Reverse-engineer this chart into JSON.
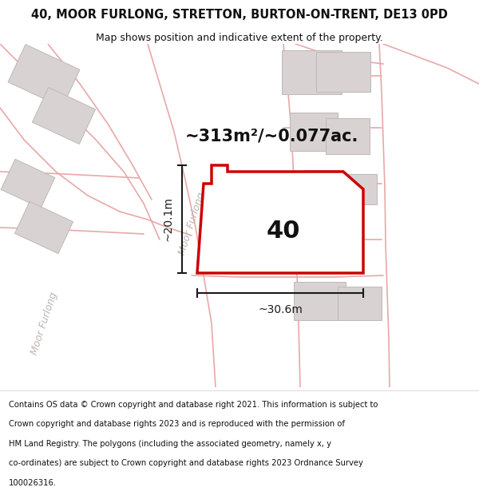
{
  "title": "40, MOOR FURLONG, STRETTON, BURTON-ON-TRENT, DE13 0PD",
  "subtitle": "Map shows position and indicative extent of the property.",
  "area_text": "~313m²/~0.077ac.",
  "width_text": "~30.6m",
  "height_text": "~20.1m",
  "plot_number": "40",
  "footer_lines": [
    "Contains OS data © Crown copyright and database right 2021. This information is subject to",
    "Crown copyright and database rights 2023 and is reproduced with the permission of",
    "HM Land Registry. The polygons (including the associated geometry, namely x, y",
    "co-ordinates) are subject to Crown copyright and database rights 2023 Ordnance Survey",
    "100026316."
  ],
  "map_bg": "#f2f0f0",
  "road_color": "#e8a8a8",
  "road_fill": "#f5f0f0",
  "building_fill": "#d8d2d2",
  "building_edge": "#c0b8b8",
  "plot_fill": "#ffffff",
  "plot_edge": "#cc0000",
  "dim_color": "#1a1a1a",
  "street_label_color": "#c0b4b4",
  "title_color": "#111111",
  "white": "#ffffff",
  "title_fontsize": 10.5,
  "subtitle_fontsize": 9.0,
  "area_fontsize": 15,
  "plot_num_fontsize": 22,
  "dim_fontsize": 10,
  "street_fontsize": 9,
  "footer_fontsize": 7.2
}
